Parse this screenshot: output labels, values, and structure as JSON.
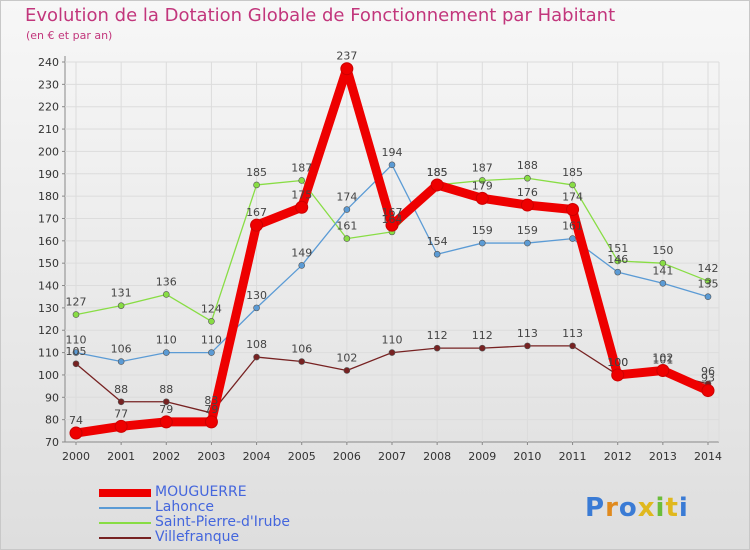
{
  "title": "Evolution de la Dotation Globale de Fonctionnement par Habitant",
  "subtitle": "(en € et par an)",
  "logo_text": "Proxiti",
  "chart_data": {
    "type": "line",
    "title": "Evolution de la Dotation Globale de Fonctionnement par Habitant",
    "subtitle": "(en € et par an)",
    "xlabel": "",
    "ylabel": "",
    "categories": [
      "2000",
      "2001",
      "2002",
      "2003",
      "2004",
      "2005",
      "2006",
      "2007",
      "2008",
      "2009",
      "2010",
      "2011",
      "2012",
      "2013",
      "2014"
    ],
    "ylim": [
      70,
      240
    ],
    "yticks": [
      70,
      80,
      90,
      100,
      110,
      120,
      130,
      140,
      150,
      160,
      170,
      180,
      190,
      200,
      210,
      220,
      230,
      240
    ],
    "grid": true,
    "legend_position": "bottom-left",
    "series": [
      {
        "name": "MOUGUERRE",
        "color": "#ee0000",
        "values": [
          74,
          77,
          79,
          79,
          167,
          175,
          237,
          167,
          185,
          179,
          176,
          174,
          100,
          102,
          93
        ]
      },
      {
        "name": "Lahonce",
        "color": "#5b9bd5",
        "values": [
          110,
          106,
          110,
          110,
          130,
          149,
          174,
          194,
          154,
          159,
          159,
          161,
          146,
          141,
          135
        ]
      },
      {
        "name": "Saint-Pierre-d'Irube",
        "color": "#88dd44",
        "values": [
          127,
          131,
          136,
          124,
          185,
          187,
          161,
          164,
          185,
          187,
          188,
          185,
          151,
          150,
          142
        ]
      },
      {
        "name": "Villefranque",
        "color": "#772222",
        "values": [
          105,
          88,
          88,
          83,
          108,
          106,
          102,
          110,
          112,
          112,
          113,
          113,
          100,
          101,
          96
        ]
      }
    ]
  }
}
